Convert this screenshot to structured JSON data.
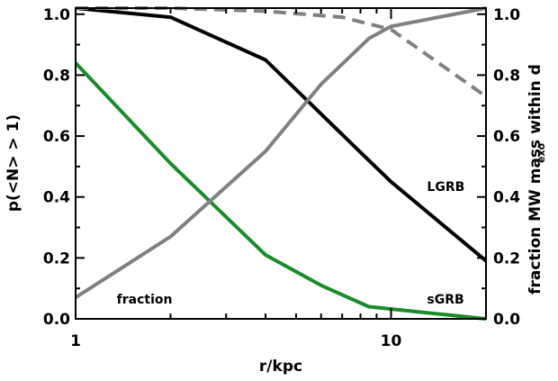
{
  "chart_data": {
    "type": "line",
    "x_scale": "log",
    "xlim": [
      1,
      20
    ],
    "ylim_left": [
      0,
      1.02
    ],
    "ylim_right": [
      0,
      1.02
    ],
    "xlabel": "r/kpc",
    "ylabel_left": "p(<N> > 1)",
    "ylabel_right_main": "fraction MW mass within d",
    "ylabel_right_sub": "exo",
    "x_ticks": [
      {
        "value": 1,
        "label": "1"
      },
      {
        "value": 10,
        "label": "10"
      }
    ],
    "y_ticks_left": [
      {
        "value": 0.0,
        "label": "0.0"
      },
      {
        "value": 0.2,
        "label": "0.2"
      },
      {
        "value": 0.4,
        "label": "0.4"
      },
      {
        "value": 0.6,
        "label": "0.6"
      },
      {
        "value": 0.8,
        "label": "0.8"
      },
      {
        "value": 1.0,
        "label": "1.0"
      }
    ],
    "y_ticks_right": [
      {
        "value": 0.0,
        "label": "0.0"
      },
      {
        "value": 0.2,
        "label": "0.2"
      },
      {
        "value": 0.4,
        "label": "0.4"
      },
      {
        "value": 0.6,
        "label": "0.6"
      },
      {
        "value": 0.8,
        "label": "0.8"
      },
      {
        "value": 1.0,
        "label": "1.0"
      }
    ],
    "grid": false,
    "series": [
      {
        "name": "LGRB",
        "axis": "left",
        "color": "#000000",
        "style": "solid",
        "points": [
          [
            1,
            1.02
          ],
          [
            2,
            0.99
          ],
          [
            4,
            0.85
          ],
          [
            8.5,
            0.52
          ],
          [
            10,
            0.45
          ],
          [
            20,
            0.19
          ]
        ]
      },
      {
        "name": "sGRB",
        "axis": "left",
        "color": "#1a8c2a",
        "style": "solid",
        "points": [
          [
            1,
            0.84
          ],
          [
            2,
            0.51
          ],
          [
            4,
            0.21
          ],
          [
            6,
            0.11
          ],
          [
            8.5,
            0.04
          ],
          [
            13,
            0.02
          ],
          [
            20,
            0.0
          ]
        ]
      },
      {
        "name": "fraction",
        "axis": "right",
        "color": "#808080",
        "style": "solid",
        "points": [
          [
            1,
            0.07
          ],
          [
            2,
            0.27
          ],
          [
            4,
            0.55
          ],
          [
            6,
            0.77
          ],
          [
            8.5,
            0.92
          ],
          [
            10,
            0.96
          ],
          [
            20,
            1.02
          ]
        ]
      },
      {
        "name": "",
        "axis": "right",
        "color": "#808080",
        "style": "dashed",
        "points": [
          [
            1,
            1.02
          ],
          [
            2,
            1.02
          ],
          [
            4,
            1.01
          ],
          [
            7,
            0.99
          ],
          [
            10,
            0.95
          ],
          [
            20,
            0.73
          ]
        ]
      }
    ],
    "annotations": [
      {
        "text": "LGRB",
        "x": 13,
        "y": 0.42
      },
      {
        "text": "sGRB",
        "x": 13,
        "y": 0.05
      },
      {
        "text": "fraction",
        "x": 1.35,
        "y": 0.05
      }
    ]
  }
}
